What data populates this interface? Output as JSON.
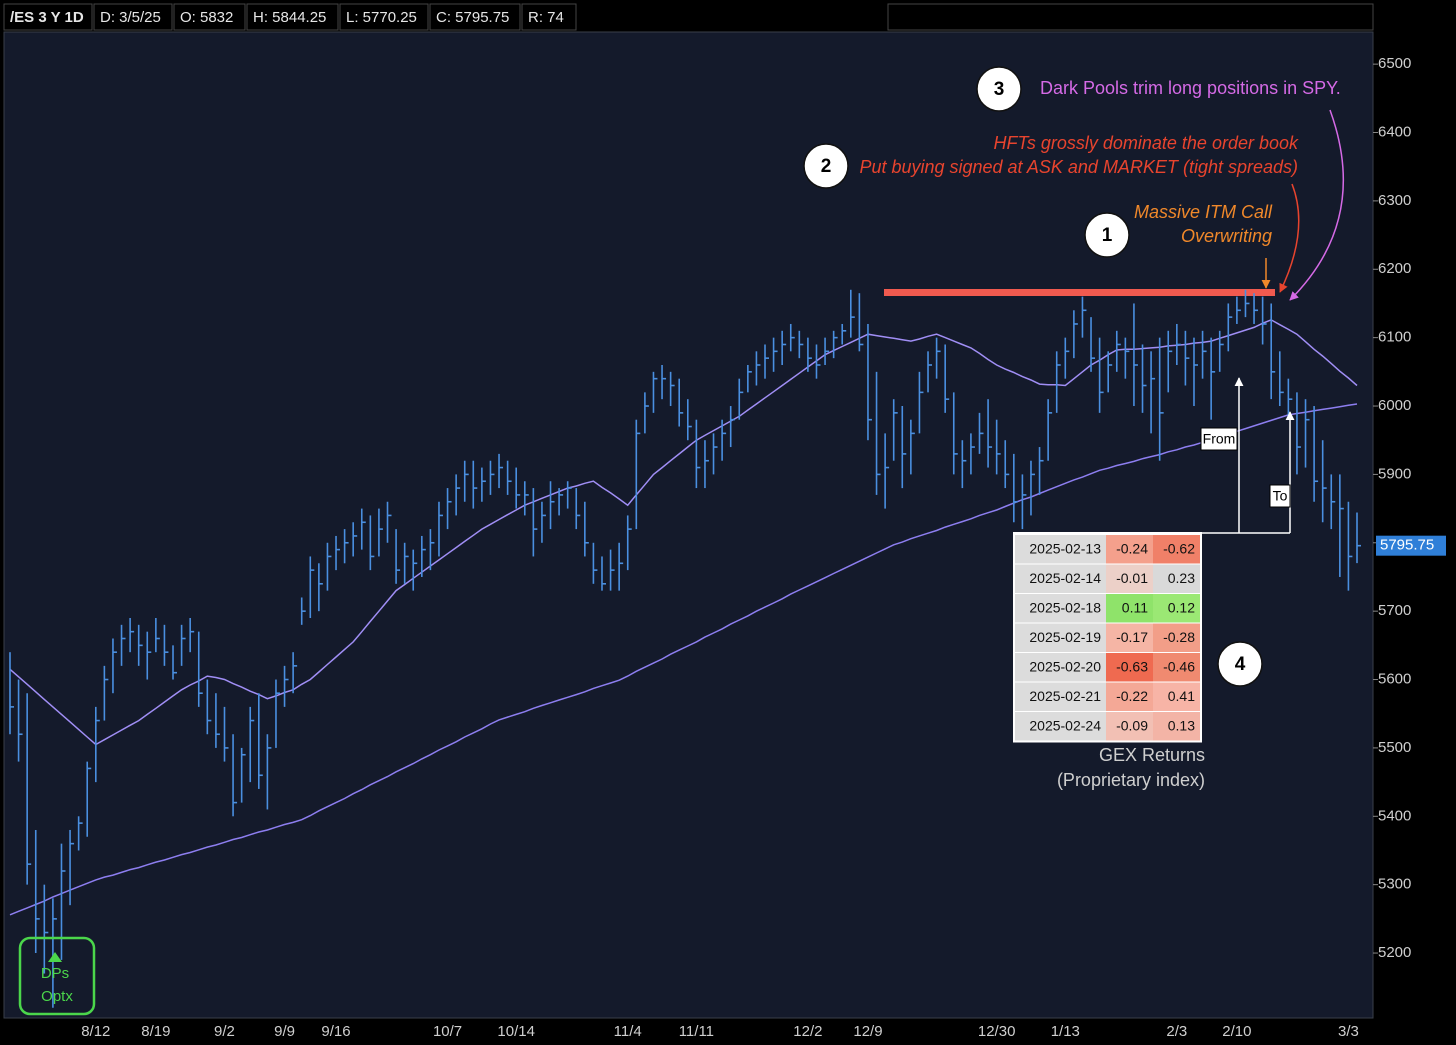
{
  "header": {
    "items": [
      "/ES 3 Y 1D",
      "D: 3/5/25",
      "O: 5832",
      "H: 5844.25",
      "L: 5770.25",
      "C: 5795.75",
      "R: 74"
    ]
  },
  "chart_data": {
    "type": "ohlc",
    "color": "#4a8fe0",
    "ylim": [
      5105,
      6547
    ],
    "yticks": [
      5200,
      5300,
      5400,
      5500,
      5600,
      5700,
      5800,
      5900,
      6000,
      6100,
      6200,
      6300,
      6400,
      6500
    ],
    "categories": [
      null,
      null,
      null,
      null,
      null,
      null,
      null,
      null,
      null,
      null,
      "8/12",
      null,
      null,
      null,
      null,
      null,
      null,
      "8/19",
      null,
      null,
      null,
      null,
      null,
      null,
      null,
      "9/2",
      null,
      null,
      null,
      null,
      null,
      null,
      "9/9",
      null,
      null,
      null,
      null,
      null,
      "9/16",
      null,
      null,
      null,
      null,
      null,
      null,
      null,
      null,
      null,
      null,
      null,
      null,
      "10/7",
      null,
      null,
      null,
      null,
      null,
      null,
      null,
      "10/14",
      null,
      null,
      null,
      null,
      null,
      null,
      null,
      null,
      null,
      null,
      null,
      null,
      "11/4",
      null,
      null,
      null,
      null,
      null,
      null,
      null,
      "11/11",
      null,
      null,
      null,
      null,
      null,
      null,
      null,
      null,
      null,
      null,
      null,
      null,
      "12/2",
      null,
      null,
      null,
      null,
      null,
      null,
      "12/9",
      null,
      null,
      null,
      null,
      null,
      null,
      null,
      null,
      null,
      null,
      null,
      null,
      null,
      null,
      "12/30",
      null,
      null,
      null,
      null,
      null,
      null,
      null,
      "1/13",
      null,
      null,
      null,
      null,
      null,
      null,
      null,
      null,
      null,
      null,
      null,
      null,
      "2/3",
      null,
      null,
      null,
      null,
      null,
      null,
      "2/10",
      null,
      null,
      null,
      null,
      null,
      null,
      null,
      null,
      null,
      null,
      null,
      null,
      "3/3",
      null
    ],
    "high": [
      5640,
      5600,
      5580,
      5380,
      5300,
      5280,
      5360,
      5380,
      5400,
      5480,
      5560,
      5620,
      5660,
      5680,
      5690,
      5680,
      5670,
      5690,
      5680,
      5650,
      5680,
      5690,
      5670,
      5600,
      5580,
      5560,
      5520,
      5500,
      5560,
      5580,
      5520,
      5600,
      5620,
      5640,
      5720,
      5780,
      5770,
      5800,
      5810,
      5820,
      5830,
      5850,
      5840,
      5850,
      5860,
      5820,
      5800,
      5790,
      5810,
      5820,
      5860,
      5880,
      5900,
      5920,
      5920,
      5910,
      5920,
      5930,
      5920,
      5910,
      5890,
      5880,
      5860,
      5890,
      5880,
      5890,
      5880,
      5860,
      5800,
      5780,
      5790,
      5800,
      5840,
      5980,
      6020,
      6050,
      6060,
      6050,
      6040,
      6010,
      5980,
      5950,
      5960,
      5980,
      6000,
      6040,
      6060,
      6080,
      6090,
      6100,
      6110,
      6120,
      6110,
      6100,
      6090,
      6100,
      6110,
      6120,
      6170,
      6165,
      6120,
      6050,
      5960,
      6010,
      6000,
      5980,
      6050,
      6080,
      6100,
      6090,
      6020,
      5950,
      5960,
      5990,
      6010,
      5980,
      5950,
      5930,
      5900,
      5920,
      5940,
      6010,
      6080,
      6100,
      6140,
      6160,
      6130,
      6100,
      6080,
      6110,
      6100,
      6150,
      6090,
      6080,
      6100,
      6110,
      6120,
      6110,
      6100,
      6110,
      6100,
      6110,
      6150,
      6160,
      6170,
      6165,
      6160,
      6150,
      6080,
      6040,
      6020,
      6010,
      6000,
      5950,
      5900,
      5900,
      5860,
      5844.25
    ],
    "low": [
      5520,
      5480,
      5300,
      5200,
      5170,
      5120,
      5190,
      5270,
      5350,
      5370,
      5450,
      5540,
      5580,
      5620,
      5640,
      5620,
      5600,
      5640,
      5620,
      5600,
      5620,
      5640,
      5560,
      5520,
      5500,
      5480,
      5400,
      5420,
      5450,
      5440,
      5410,
      5500,
      5560,
      5580,
      5680,
      5690,
      5700,
      5730,
      5760,
      5770,
      5780,
      5790,
      5760,
      5780,
      5800,
      5740,
      5740,
      5730,
      5750,
      5760,
      5780,
      5820,
      5840,
      5860,
      5850,
      5860,
      5870,
      5880,
      5870,
      5850,
      5840,
      5780,
      5800,
      5820,
      5840,
      5850,
      5820,
      5780,
      5740,
      5730,
      5730,
      5730,
      5760,
      5820,
      5960,
      5990,
      6010,
      6000,
      5970,
      5950,
      5880,
      5880,
      5900,
      5920,
      5940,
      5980,
      6020,
      6030,
      6040,
      6050,
      6060,
      6080,
      6070,
      6050,
      6040,
      6060,
      6070,
      6090,
      6100,
      6080,
      5950,
      5870,
      5850,
      5920,
      5880,
      5900,
      5960,
      6020,
      6040,
      5990,
      5900,
      5880,
      5900,
      5930,
      5910,
      5900,
      5880,
      5830,
      5820,
      5840,
      5870,
      5920,
      5990,
      6040,
      6070,
      6100,
      6050,
      5990,
      6020,
      6050,
      6040,
      6000,
      5990,
      5960,
      5920,
      6020,
      6060,
      6030,
      6000,
      6040,
      5980,
      6050,
      6080,
      6120,
      6130,
      6120,
      6090,
      6010,
      6000,
      5980,
      5900,
      5910,
      5860,
      5830,
      5820,
      5750,
      5730,
      5770.25
    ],
    "close": [
      5560,
      5520,
      5330,
      5250,
      5230,
      5250,
      5320,
      5360,
      5390,
      5470,
      5540,
      5600,
      5640,
      5660,
      5670,
      5650,
      5640,
      5660,
      5640,
      5610,
      5660,
      5670,
      5580,
      5540,
      5520,
      5500,
      5420,
      5490,
      5540,
      5460,
      5500,
      5580,
      5600,
      5620,
      5700,
      5760,
      5740,
      5780,
      5790,
      5800,
      5810,
      5830,
      5780,
      5820,
      5840,
      5760,
      5780,
      5770,
      5790,
      5800,
      5840,
      5860,
      5880,
      5900,
      5880,
      5890,
      5900,
      5910,
      5890,
      5870,
      5870,
      5820,
      5840,
      5860,
      5870,
      5880,
      5840,
      5800,
      5760,
      5740,
      5760,
      5770,
      5820,
      5960,
      6000,
      6040,
      6040,
      6030,
      5990,
      5970,
      5910,
      5920,
      5940,
      5960,
      5980,
      6020,
      6050,
      6060,
      6070,
      6080,
      6090,
      6100,
      6090,
      6070,
      6060,
      6080,
      6100,
      6110,
      6130,
      6090,
      5980,
      5900,
      5910,
      5990,
      5930,
      5960,
      6020,
      6060,
      6080,
      6010,
      5930,
      5920,
      5940,
      5960,
      5940,
      5930,
      5900,
      5860,
      5870,
      5900,
      5920,
      5990,
      6060,
      6080,
      6120,
      6140,
      6070,
      6020,
      6060,
      6090,
      6080,
      6060,
      6030,
      6040,
      5990,
      6080,
      6090,
      6070,
      6060,
      6080,
      6050,
      6090,
      6130,
      6140,
      6150,
      6140,
      6120,
      6050,
      6020,
      6010,
      5940,
      5980,
      5890,
      5880,
      5860,
      5850,
      5780,
      5795.75
    ],
    "moving_averages": [
      {
        "color": "#a08ef5",
        "values": [
          5615,
          5604,
          5593,
          5582,
          5571,
          5560,
          5549,
          5538,
          5527,
          5516,
          5505,
          5512,
          5519,
          5526,
          5533,
          5540,
          5549,
          5558,
          5567,
          5576,
          5585,
          5592,
          5598,
          5605,
          5603,
          5600,
          5594,
          5589,
          5583,
          5578,
          5572,
          5576,
          5581,
          5585,
          5593,
          5600,
          5611,
          5622,
          5633,
          5644,
          5655,
          5670,
          5685,
          5700,
          5715,
          5730,
          5739,
          5748,
          5757,
          5766,
          5775,
          5784,
          5793,
          5802,
          5811,
          5820,
          5827,
          5834,
          5841,
          5848,
          5855,
          5860,
          5865,
          5870,
          5875,
          5880,
          5883,
          5887,
          5890,
          5881,
          5873,
          5864,
          5855,
          5870,
          5885,
          5900,
          5910,
          5920,
          5930,
          5940,
          5950,
          5957,
          5964,
          5971,
          5978,
          5985,
          5994,
          6003,
          6012,
          6021,
          6030,
          6039,
          6048,
          6057,
          6066,
          6075,
          6081,
          6087,
          6093,
          6099,
          6105,
          6103,
          6101,
          6099,
          6097,
          6095,
          6098,
          6102,
          6105,
          6100,
          6095,
          6090,
          6085,
          6077,
          6068,
          6060,
          6054,
          6049,
          6043,
          6038,
          6032,
          6031,
          6031,
          6030,
          6040,
          6050,
          6060,
          6067,
          6075,
          6082,
          6083,
          6083,
          6084,
          6085,
          6086,
          6088,
          6089,
          6090,
          6092,
          6093,
          6095,
          6099,
          6103,
          6107,
          6111,
          6115,
          6121,
          6126,
          6119,
          6112,
          6105,
          6094,
          6083,
          6073,
          6062,
          6051,
          6041,
          6030
        ]
      },
      {
        "color": "#8d7ef0",
        "values": [
          5256,
          5261,
          5266,
          5271,
          5276,
          5282,
          5287,
          5292,
          5297,
          5302,
          5307,
          5311,
          5314,
          5318,
          5322,
          5325,
          5329,
          5333,
          5336,
          5340,
          5344,
          5347,
          5351,
          5355,
          5358,
          5362,
          5366,
          5369,
          5373,
          5377,
          5380,
          5384,
          5388,
          5391,
          5395,
          5401,
          5408,
          5414,
          5420,
          5426,
          5433,
          5439,
          5446,
          5452,
          5458,
          5465,
          5471,
          5477,
          5484,
          5490,
          5497,
          5503,
          5509,
          5516,
          5522,
          5528,
          5535,
          5541,
          5545,
          5549,
          5553,
          5558,
          5562,
          5566,
          5570,
          5574,
          5578,
          5582,
          5587,
          5591,
          5595,
          5599,
          5605,
          5612,
          5618,
          5624,
          5630,
          5637,
          5643,
          5649,
          5655,
          5662,
          5668,
          5674,
          5681,
          5687,
          5693,
          5700,
          5706,
          5712,
          5718,
          5725,
          5731,
          5737,
          5743,
          5749,
          5755,
          5761,
          5767,
          5773,
          5779,
          5785,
          5791,
          5797,
          5801,
          5806,
          5810,
          5814,
          5818,
          5823,
          5827,
          5831,
          5835,
          5840,
          5844,
          5848,
          5853,
          5858,
          5863,
          5867,
          5872,
          5877,
          5882,
          5887,
          5892,
          5896,
          5901,
          5906,
          5909,
          5913,
          5916,
          5919,
          5923,
          5926,
          5929,
          5933,
          5936,
          5940,
          5943,
          5947,
          5951,
          5955,
          5959,
          5963,
          5967,
          5971,
          5975,
          5979,
          5983,
          5987,
          5989,
          5991,
          5993,
          5995,
          5997,
          5999,
          6001,
          6003
        ]
      }
    ],
    "resistance_level": 6166,
    "resistance_color": "#f05a4f"
  },
  "annotations": {
    "note_1": {
      "number": "1",
      "lines": [
        "Massive ITM Call",
        "Overwriting"
      ]
    },
    "note_2": {
      "number": "2",
      "lines": [
        "HFTs grossly dominate the order book",
        "Put buying signed at ASK and MARKET (tight spreads)"
      ]
    },
    "note_3": {
      "number": "3",
      "lines": [
        "Dark Pools trim long positions in SPY."
      ]
    },
    "note_4": {
      "number": "4"
    },
    "from": "From",
    "to": "To",
    "signal": [
      "DPs",
      "Optx"
    ]
  },
  "gex_table": {
    "rows": [
      [
        "2025-02-13",
        -0.24,
        -0.62
      ],
      [
        "2025-02-14",
        -0.01,
        0.23
      ],
      [
        "2025-02-18",
        0.11,
        0.12
      ],
      [
        "2025-02-19",
        -0.17,
        -0.28
      ],
      [
        "2025-02-20",
        -0.63,
        -0.46
      ],
      [
        "2025-02-21",
        -0.22,
        0.41
      ],
      [
        "2025-02-24",
        -0.09,
        0.13
      ]
    ],
    "colors": [
      [
        "#dcdcdc",
        "#f4a08c",
        "#f08068"
      ],
      [
        "#dcdcdc",
        "#ecd0c8",
        "#d9d9d9"
      ],
      [
        "#dcdcdc",
        "#8fe36a",
        "#9be874"
      ],
      [
        "#dcdcdc",
        "#f5b5a5",
        "#f29e88"
      ],
      [
        "#dcdcdc",
        "#ef6a50",
        "#f08a70"
      ],
      [
        "#dcdcdc",
        "#f4a896",
        "#f7b4a6"
      ],
      [
        "#dcdcdc",
        "#f2c0b4",
        "#f3b4a6"
      ]
    ],
    "caption": [
      "GEX Returns",
      "(Proprietary index)"
    ]
  }
}
